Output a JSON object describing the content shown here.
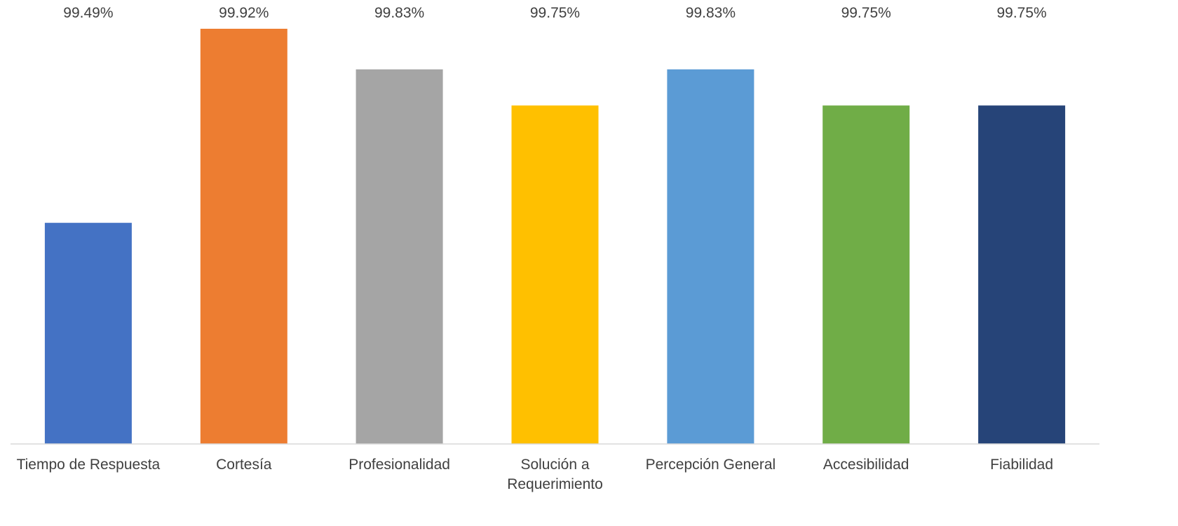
{
  "chart_data": {
    "type": "bar",
    "title": "",
    "xlabel": "",
    "ylabel": "",
    "ylim": [
      99.0,
      99.92
    ],
    "grid": false,
    "legend": "none",
    "categories": [
      [
        "Tiempo de Respuesta"
      ],
      [
        "Cortesía"
      ],
      [
        "Profesionalidad"
      ],
      [
        "Solución a",
        "Requerimiento"
      ],
      [
        "Percepción General"
      ],
      [
        "Accesibilidad"
      ],
      [
        "Fiabilidad"
      ]
    ],
    "values": [
      99.49,
      99.92,
      99.83,
      99.75,
      99.83,
      99.75,
      99.75
    ],
    "value_labels": [
      "99.49%",
      "99.92%",
      "99.83%",
      "99.75%",
      "99.83%",
      "99.75%",
      "99.75%"
    ],
    "colors": [
      "#4472C4",
      "#ED7D31",
      "#A5A5A5",
      "#FFC000",
      "#5B9BD5",
      "#70AD47",
      "#264478"
    ]
  }
}
